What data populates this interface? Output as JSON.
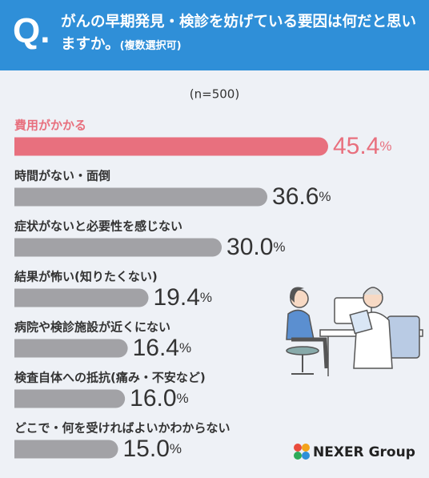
{
  "chart_data": {
    "type": "hbar",
    "question_label": "Q.",
    "title": "がんの早期発見・検診を妨げている要因は何だと思いますか。",
    "title_note": "(複数選択可)",
    "subtitle": "(n=500)",
    "categories": [
      "費用がかかる",
      "時間がない・面倒",
      "症状がないと必要性を感じない",
      "結果が怖い(知りたくない)",
      "病院や検診施設が近くにない",
      "検査自体への抵抗(痛み・不安など)",
      "どこで・何を受ければよいかわからない"
    ],
    "values": [
      45.4,
      36.6,
      30.0,
      19.4,
      16.4,
      16.0,
      15.0
    ],
    "value_labels": [
      "45.4%",
      "36.6%",
      "30.0%",
      "19.4%",
      "16.4%",
      "16.0%",
      "15.0%"
    ],
    "colors": [
      "#e8707e",
      "#a2a2a6",
      "#a2a2a6",
      "#a2a2a6",
      "#a2a2a6",
      "#a2a2a6",
      "#a2a2a6"
    ],
    "label_colors": [
      "#e8707e",
      "#333333",
      "#333333",
      "#333333",
      "#333333",
      "#333333",
      "#333333"
    ],
    "xlim": [
      0,
      45.4
    ]
  },
  "logo": "NEXER Group"
}
